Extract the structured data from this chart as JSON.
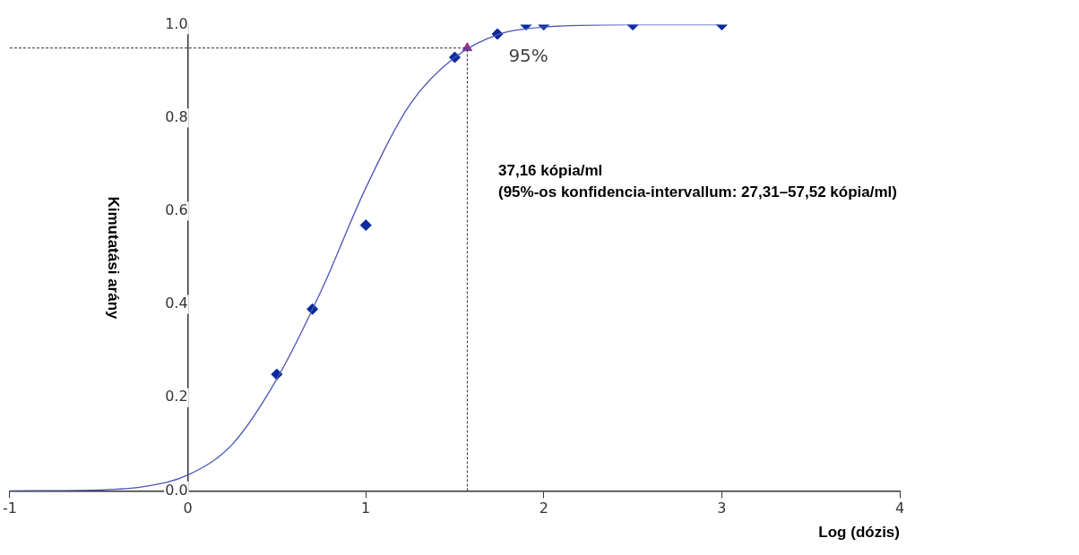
{
  "chart_data": {
    "type": "scatter",
    "xlabel": "Log (dózis)",
    "ylabel": "Kimutatási arány",
    "xlim": [
      -1,
      4
    ],
    "xticks": [
      -1,
      0,
      1,
      2,
      3,
      4
    ],
    "ylim": [
      0,
      1
    ],
    "yticks": [
      {
        "value": 0,
        "label": "0.0"
      },
      {
        "value": 0.2,
        "label": "0.2"
      },
      {
        "value": 0.4,
        "label": "0.4"
      },
      {
        "value": 0.6,
        "label": "0.6"
      },
      {
        "value": 0.8,
        "label": "0.8"
      },
      {
        "value": 1,
        "label": "1.0"
      }
    ],
    "grid": false,
    "legend": false,
    "series": [
      {
        "type": "line",
        "color": "#4a55b8",
        "marker": "none",
        "x": [
          -1,
          -0.5,
          -0.25,
          0,
          0.25,
          0.5,
          0.75,
          1,
          1.25,
          1.5,
          1.75,
          2,
          2.5,
          3
        ],
        "values": [
          0,
          0.002,
          0.009,
          0.034,
          0.1,
          0.24,
          0.43,
          0.65,
          0.83,
          0.93,
          0.98,
          0.995,
          1,
          1
        ]
      },
      {
        "color": "#0a2a9e",
        "marker": "diamond",
        "x": [
          0.5,
          0.7,
          1,
          1.5,
          1.74,
          1.9,
          2,
          2.5,
          3
        ],
        "values": [
          0.25,
          0.39,
          0.57,
          0.93,
          0.98,
          1,
          1,
          1,
          1
        ]
      },
      {
        "color": "#9b2d8c",
        "marker": "triangle",
        "x": [
          1.57
        ],
        "values": [
          0.95
        ]
      }
    ],
    "ref_lines": [
      {
        "axis": "y",
        "value": 0.95,
        "color": "#333333",
        "line_style": "dashed"
      },
      {
        "axis": "x",
        "value": 1.57,
        "color": "#333333",
        "line_style": "dashed"
      }
    ],
    "annotations": [
      {
        "text": "95%",
        "x": 1.57,
        "y": 0.95
      },
      "37,16 kópia/ml",
      "(95%-os konfidencia-intervallum: 27,31–57,52 kópia/ml)"
    ]
  }
}
